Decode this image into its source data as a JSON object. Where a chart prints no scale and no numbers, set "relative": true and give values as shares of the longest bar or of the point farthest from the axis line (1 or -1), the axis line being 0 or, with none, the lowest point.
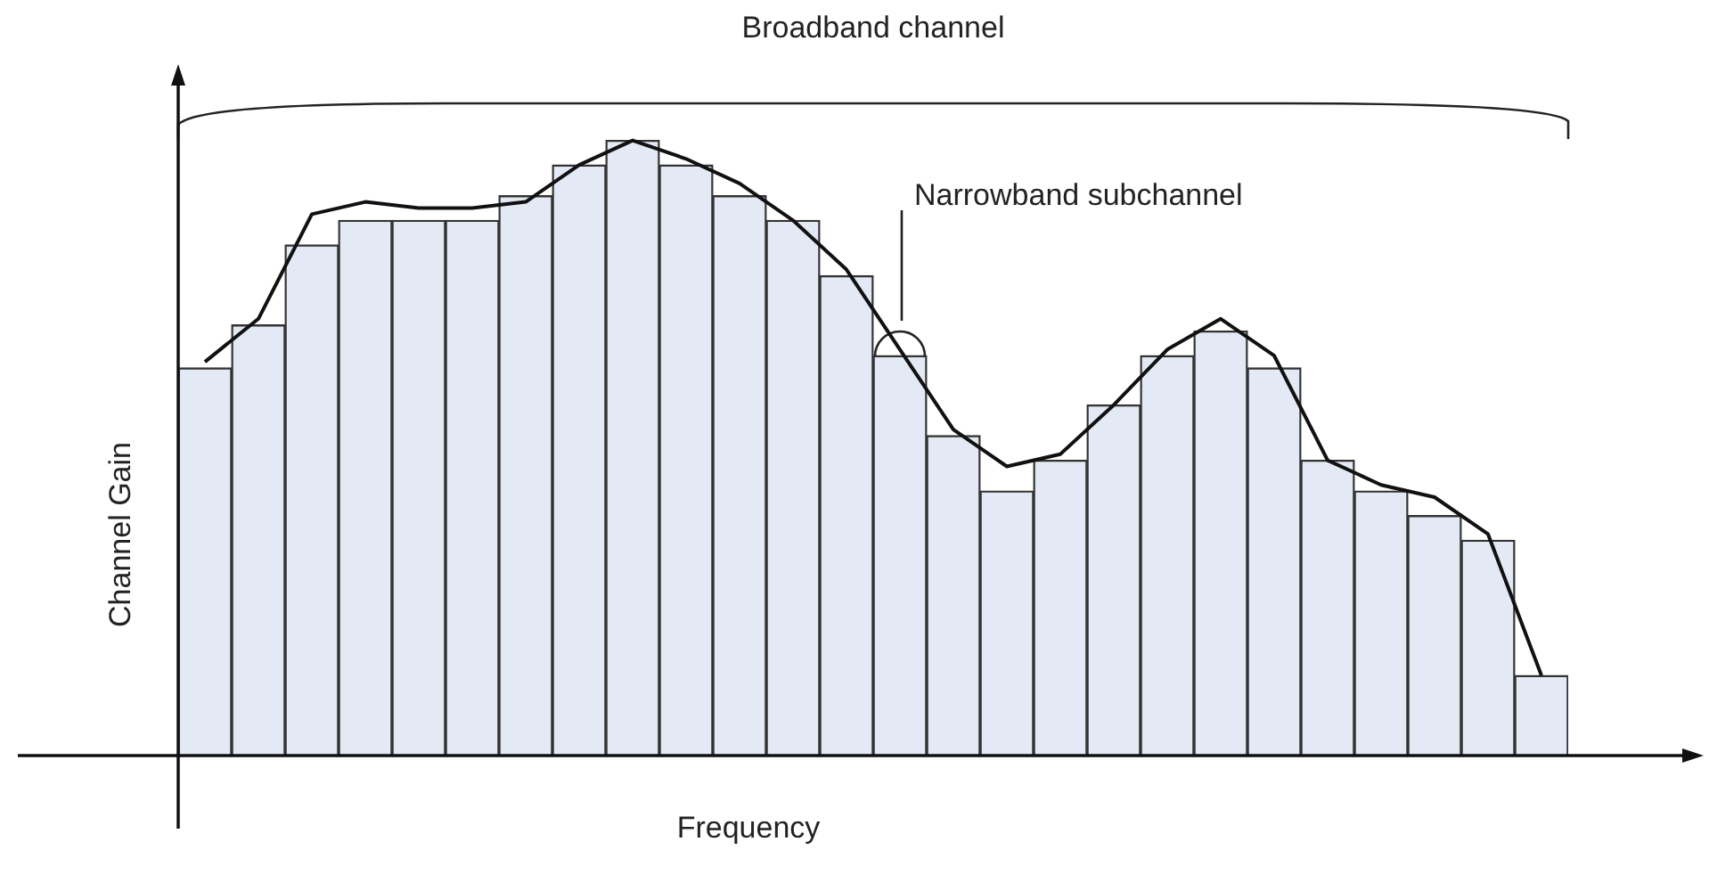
{
  "chart_data": [
    {
      "type": "bar",
      "title": "Broadband channel",
      "xlabel": "Frequency",
      "ylabel": "Channel Gain",
      "annotations": [
        "Narrowband subchannel"
      ],
      "relative": true,
      "color": "#e3eaf5",
      "categories": [
        null,
        null,
        null,
        null,
        null,
        null,
        null,
        null,
        null,
        null,
        null,
        null,
        null,
        null,
        null,
        null,
        null,
        null,
        null,
        null,
        null,
        null,
        null,
        null,
        null,
        null
      ],
      "values": [
        0.63,
        0.7,
        0.83,
        0.87,
        0.87,
        0.87,
        0.91,
        0.96,
        1,
        0.96,
        0.91,
        0.87,
        0.78,
        0.65,
        0.52,
        0.43,
        0.48,
        0.57,
        0.65,
        0.69,
        0.63,
        0.48,
        0.43,
        0.39,
        0.35,
        0.13
      ]
    },
    {
      "type": "line",
      "relative": true,
      "color": "#111111",
      "marker": "none",
      "categories": [
        null,
        null,
        null,
        null,
        null,
        null,
        null,
        null,
        null,
        null,
        null,
        null,
        null,
        null,
        null,
        null,
        null,
        null,
        null,
        null,
        null,
        null,
        null,
        null,
        null,
        null
      ],
      "values": [
        0.64,
        0.71,
        0.88,
        0.9,
        0.89,
        0.89,
        0.9,
        0.96,
        1,
        0.97,
        0.93,
        0.87,
        0.79,
        0.66,
        0.53,
        0.47,
        0.49,
        0.57,
        0.66,
        0.71,
        0.65,
        0.48,
        0.44,
        0.42,
        0.36,
        0.13
      ]
    }
  ]
}
